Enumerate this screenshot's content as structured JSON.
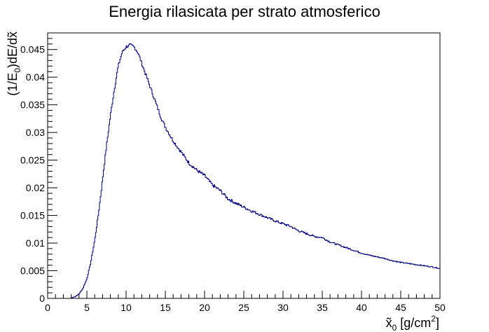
{
  "chart_data": {
    "type": "line",
    "style": "step-histogram",
    "title": "Energia rilasicata per strato atmosferico",
    "xlabel": {
      "main": "x̃",
      "sub": "0",
      "rest": " [g/cm",
      "sup": "2",
      "end": "]"
    },
    "ylabel": {
      "pre": "(1/E",
      "sub": "0",
      "post": ")dE/dx̃"
    },
    "xlim": [
      0,
      50
    ],
    "ylim": [
      0,
      0.048
    ],
    "x_ticks": [
      0,
      5,
      10,
      15,
      20,
      25,
      30,
      35,
      40,
      45,
      50
    ],
    "x_tick_labels": [
      "0",
      "5",
      "10",
      "15",
      "20",
      "25",
      "30",
      "35",
      "40",
      "45",
      "50"
    ],
    "y_ticks": [
      0,
      0.005,
      0.01,
      0.015,
      0.02,
      0.025,
      0.03,
      0.035,
      0.04,
      0.045
    ],
    "y_tick_labels": [
      "0",
      "0.005",
      "0.01",
      "0.015",
      "0.02",
      "0.025",
      "0.03",
      "0.035",
      "0.04",
      "0.045"
    ],
    "grid": false,
    "line_color": "#000080",
    "series": [
      {
        "x": [
          3,
          3.5,
          4,
          4.5,
          5,
          5.5,
          6,
          6.5,
          7,
          7.5,
          8,
          8.5,
          9,
          9.5,
          10,
          10.5,
          11,
          11.5,
          12,
          12.5,
          13,
          13.5,
          14,
          14.5,
          15,
          16,
          17,
          18,
          19,
          20,
          21,
          22,
          23,
          24,
          25,
          26,
          27,
          28,
          29,
          30,
          31,
          32,
          33,
          34,
          35,
          36,
          37,
          38,
          39,
          40,
          41,
          42,
          43,
          44,
          45,
          46,
          47,
          48,
          49,
          50
        ],
        "y": [
          0.0001,
          0.0003,
          0.0008,
          0.0018,
          0.0035,
          0.0065,
          0.0105,
          0.0155,
          0.0215,
          0.0275,
          0.033,
          0.0378,
          0.042,
          0.0445,
          0.0455,
          0.0458,
          0.0455,
          0.0445,
          0.0425,
          0.0405,
          0.0385,
          0.0365,
          0.0345,
          0.0325,
          0.031,
          0.0285,
          0.0265,
          0.0245,
          0.0232,
          0.0222,
          0.0205,
          0.0195,
          0.018,
          0.0172,
          0.0165,
          0.0158,
          0.0152,
          0.0146,
          0.014,
          0.0135,
          0.013,
          0.0122,
          0.0117,
          0.0112,
          0.011,
          0.0102,
          0.0097,
          0.0092,
          0.0087,
          0.0082,
          0.0078,
          0.0075,
          0.0072,
          0.0068,
          0.0065,
          0.0063,
          0.0061,
          0.0059,
          0.0057,
          0.0054
        ]
      }
    ]
  }
}
